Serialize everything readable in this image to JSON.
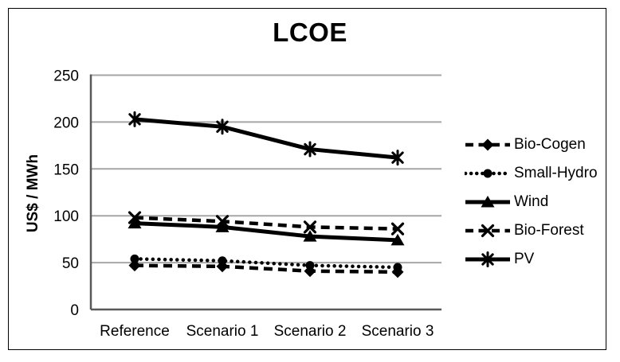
{
  "chart_data": {
    "type": "line",
    "title": "LCOE",
    "ylabel": "US$ / MWh",
    "xlabel": "",
    "categories": [
      "Reference",
      "Scenario 1",
      "Scenario 2",
      "Scenario 3"
    ],
    "ylim": [
      0,
      250
    ],
    "y_ticks": [
      0,
      50,
      100,
      150,
      200,
      250
    ],
    "grid": "horizontal",
    "legend_position": "right",
    "series_color": "#000000",
    "gridline_color": "#a6a6a6",
    "axis_color": "#595959",
    "series": [
      {
        "name": "Bio-Cogen",
        "values": [
          47,
          46,
          41,
          40
        ],
        "line": "dashed",
        "marker": "diamond"
      },
      {
        "name": "Small-Hydro",
        "values": [
          54,
          52,
          47,
          45
        ],
        "line": "dotted",
        "marker": "circle"
      },
      {
        "name": "Wind",
        "values": [
          92,
          88,
          78,
          74
        ],
        "line": "solid",
        "marker": "triangle"
      },
      {
        "name": "Bio-Forest",
        "values": [
          98,
          94,
          88,
          86
        ],
        "line": "dashed",
        "marker": "x"
      },
      {
        "name": "PV",
        "values": [
          203,
          195,
          171,
          162
        ],
        "line": "solid",
        "marker": "asterisk"
      }
    ]
  }
}
